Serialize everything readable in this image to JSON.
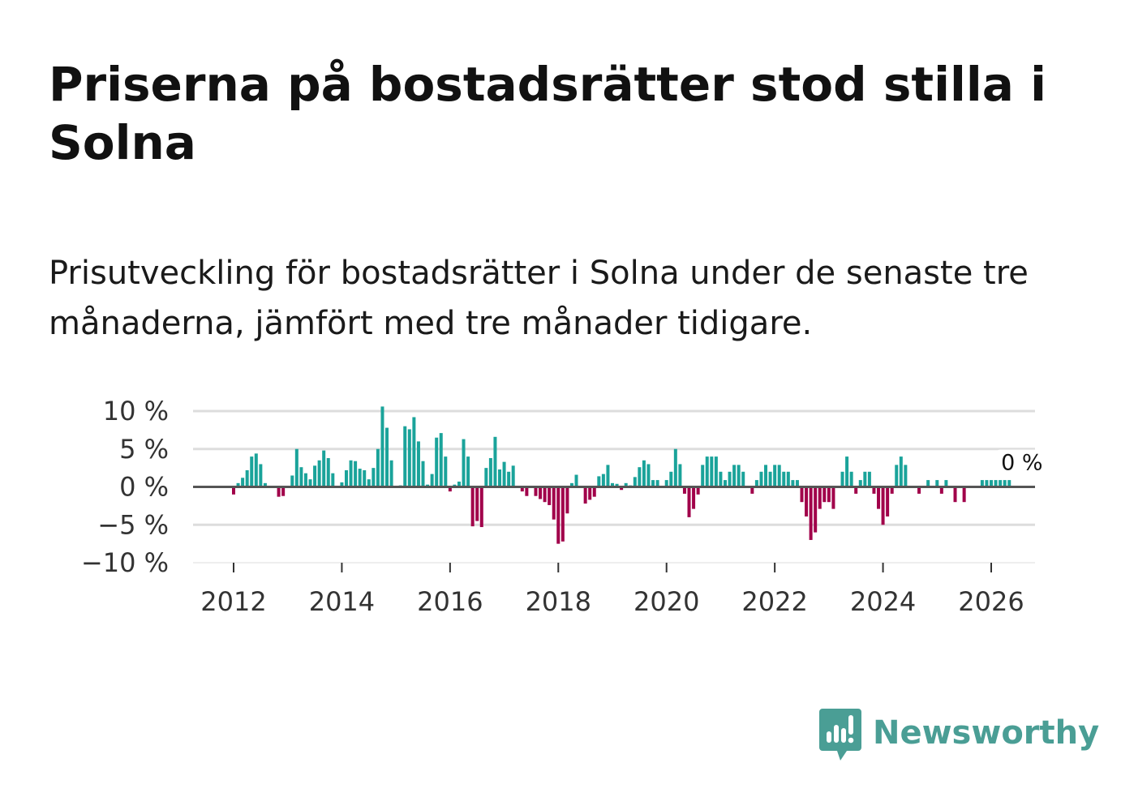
{
  "title": "Priserna på bostadsrätter stod stilla i Solna",
  "subtitle": "Prisutveckling för bostadsrätter i Solna under de senaste tre månaderna, jämfört med tre månader tidigare.",
  "brand": "Newsworthy",
  "colors": {
    "positive": "#1aa39a",
    "negative": "#a1004a",
    "grid": "#dddddd",
    "zero_line": "#555555",
    "brand": "#4a9e95"
  },
  "chart_data": {
    "type": "bar",
    "title": "",
    "xlabel": "",
    "ylabel": "",
    "ylim": [
      -10,
      10
    ],
    "y_ticks": [
      10,
      5,
      0,
      -5,
      -10
    ],
    "y_tick_labels": [
      "10 %",
      "5 %",
      "0 %",
      "−5 %",
      "−10 %"
    ],
    "x_ticks": [
      2012,
      2014,
      2016,
      2018,
      2020,
      2022,
      2024,
      2026
    ],
    "x_tick_labels": [
      "2012",
      "2014",
      "2016",
      "2018",
      "2020",
      "2022",
      "2024",
      "2026"
    ],
    "start": {
      "year": 2011,
      "month": 1
    },
    "unit": "%",
    "end_label": "0 %",
    "values": [
      0,
      0,
      0,
      0,
      0,
      0,
      0,
      0,
      0,
      0,
      0,
      0,
      -1.0,
      0.5,
      1.2,
      2.2,
      4.0,
      4.4,
      3.0,
      0.5,
      0,
      0,
      -1.3,
      -1.2,
      0,
      1.5,
      5.0,
      2.6,
      1.8,
      1.0,
      2.8,
      3.5,
      4.8,
      3.8,
      1.8,
      0,
      0.6,
      2.2,
      3.5,
      3.4,
      2.4,
      2.2,
      1.0,
      2.5,
      5.0,
      10.6,
      7.8,
      3.5,
      0,
      0.2,
      8.0,
      7.6,
      9.2,
      6.0,
      3.4,
      0.3,
      1.7,
      6.5,
      7.1,
      4.0,
      -0.6,
      0.3,
      0.7,
      6.3,
      4.0,
      -5.2,
      -4.5,
      -5.3,
      2.5,
      3.8,
      6.6,
      2.3,
      3.3,
      2.0,
      2.8,
      0,
      -0.6,
      -1.2,
      0,
      -1.2,
      -1.6,
      -2.0,
      -2.4,
      -4.3,
      -7.5,
      -7.2,
      -3.5,
      0.5,
      1.6,
      0,
      -2.2,
      -1.7,
      -1.3,
      1.4,
      1.7,
      2.9,
      0.5,
      0.4,
      -0.4,
      0.5,
      0.2,
      1.3,
      2.6,
      3.5,
      3.0,
      0.9,
      0.9,
      0,
      0.9,
      2.0,
      5.0,
      3.0,
      -0.9,
      -4.0,
      -2.9,
      -1.0,
      2.9,
      4.0,
      4.0,
      4.0,
      2.0,
      0.9,
      2.0,
      2.9,
      2.9,
      2.0,
      0,
      -0.9,
      0.9,
      2.0,
      2.9,
      2.0,
      2.9,
      2.9,
      2.0,
      2.0,
      0.9,
      0.9,
      -2.0,
      -3.9,
      -7.0,
      -6.0,
      -2.9,
      -2.0,
      -2.0,
      -2.9,
      0,
      2.0,
      4.0,
      2.0,
      -0.9,
      0.9,
      2.0,
      2.0,
      -0.9,
      -2.9,
      -5.0,
      -3.9,
      -0.9,
      2.9,
      4.0,
      2.9,
      0,
      0,
      -0.9,
      0,
      0.9,
      0,
      0.9,
      -0.9,
      0.9,
      0,
      -2.0,
      0,
      -2.0,
      0,
      0,
      0,
      0.9,
      0.9,
      0.9,
      0.9,
      0.9,
      0.9,
      0.9,
      0
    ]
  }
}
